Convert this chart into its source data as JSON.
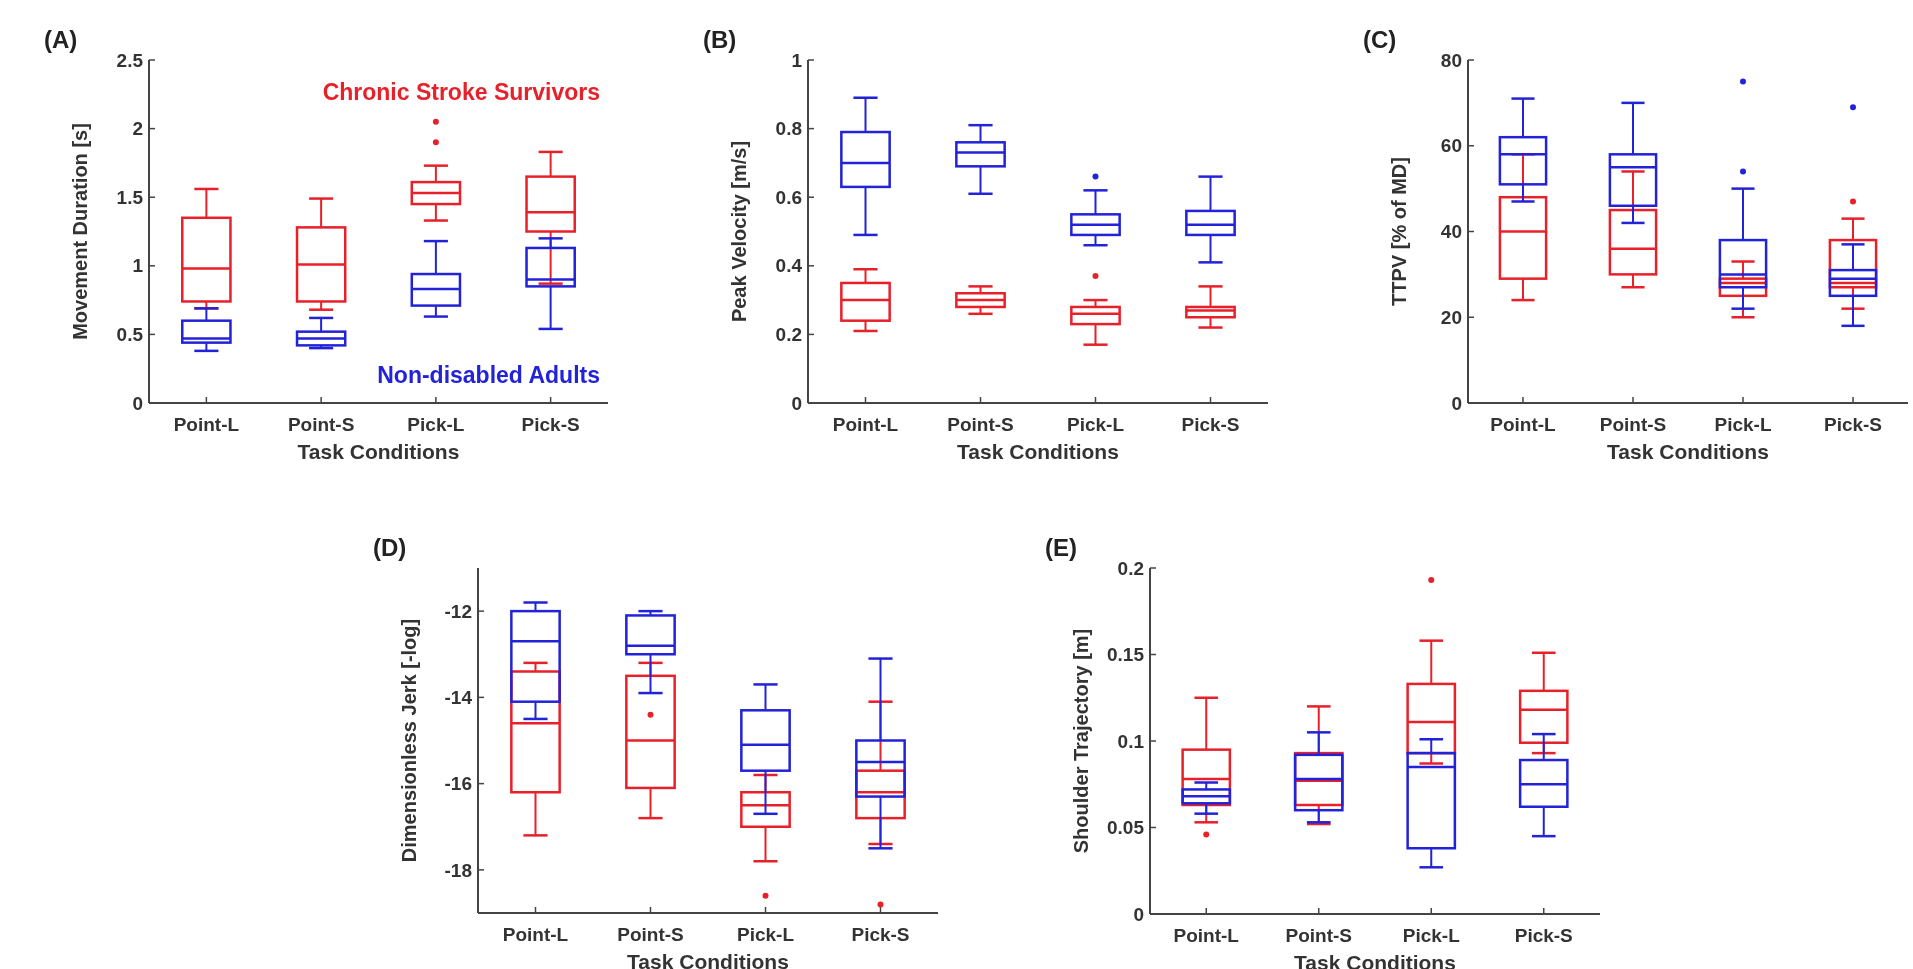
{
  "chart_data": [
    {
      "type": "box",
      "title": "(A)",
      "xlabel": "Task Conditions",
      "ylabel": "Movement Duration [s]",
      "categories": [
        "Point-L",
        "Point-S",
        "Pick-L",
        "Pick-S"
      ],
      "ylim": [
        0,
        2.5
      ],
      "yticks": [
        0,
        0.5,
        1,
        1.5,
        2,
        2.5
      ],
      "series": [
        {
          "name": "Chronic Stroke Survivors",
          "color": "#e8202a",
          "boxes": [
            {
              "low": 0.69,
              "q1": 0.74,
              "median": 0.98,
              "q3": 1.35,
              "high": 1.56
            },
            {
              "low": 0.68,
              "q1": 0.74,
              "median": 1.01,
              "q3": 1.28,
              "high": 1.49
            },
            {
              "low": 1.33,
              "q1": 1.45,
              "median": 1.53,
              "q3": 1.61,
              "high": 1.73,
              "outliers": [
                1.9,
                2.05
              ]
            },
            {
              "low": 0.87,
              "q1": 1.25,
              "median": 1.39,
              "q3": 1.65,
              "high": 1.83
            }
          ]
        },
        {
          "name": "Non-disabled Adults",
          "color": "#2222d8",
          "boxes": [
            {
              "low": 0.38,
              "q1": 0.44,
              "median": 0.47,
              "q3": 0.6,
              "high": 0.69
            },
            {
              "low": 0.4,
              "q1": 0.42,
              "median": 0.47,
              "q3": 0.52,
              "high": 0.62
            },
            {
              "low": 0.63,
              "q1": 0.71,
              "median": 0.83,
              "q3": 0.94,
              "high": 1.18
            },
            {
              "low": 0.54,
              "q1": 0.85,
              "median": 0.9,
              "q3": 1.13,
              "high": 1.2
            }
          ]
        }
      ]
    },
    {
      "type": "box",
      "title": "(B)",
      "xlabel": "Task Conditions",
      "ylabel": "Peak Velocity [m/s]",
      "categories": [
        "Point-L",
        "Point-S",
        "Pick-L",
        "Pick-S"
      ],
      "ylim": [
        0,
        1
      ],
      "yticks": [
        0,
        0.2,
        0.4,
        0.6,
        0.8,
        1
      ],
      "series": [
        {
          "color": "#e8202a",
          "boxes": [
            {
              "low": 0.21,
              "q1": 0.24,
              "median": 0.3,
              "q3": 0.35,
              "high": 0.39
            },
            {
              "low": 0.26,
              "q1": 0.28,
              "median": 0.3,
              "q3": 0.32,
              "high": 0.34
            },
            {
              "low": 0.17,
              "q1": 0.23,
              "median": 0.26,
              "q3": 0.28,
              "high": 0.3,
              "outliers": [
                0.37
              ]
            },
            {
              "low": 0.22,
              "q1": 0.25,
              "median": 0.27,
              "q3": 0.28,
              "high": 0.34
            }
          ]
        },
        {
          "color": "#2222d8",
          "boxes": [
            {
              "low": 0.49,
              "q1": 0.63,
              "median": 0.7,
              "q3": 0.79,
              "high": 0.89
            },
            {
              "low": 0.61,
              "q1": 0.69,
              "median": 0.73,
              "q3": 0.76,
              "high": 0.81
            },
            {
              "low": 0.46,
              "q1": 0.49,
              "median": 0.52,
              "q3": 0.55,
              "high": 0.62,
              "outliers": [
                0.66
              ]
            },
            {
              "low": 0.41,
              "q1": 0.49,
              "median": 0.52,
              "q3": 0.56,
              "high": 0.66
            }
          ]
        }
      ]
    },
    {
      "type": "box",
      "title": "(C)",
      "xlabel": "Task Conditions",
      "ylabel": "TTPV [% of MD]",
      "categories": [
        "Point-L",
        "Point-S",
        "Pick-L",
        "Pick-S"
      ],
      "ylim": [
        0,
        80
      ],
      "yticks": [
        0,
        20,
        40,
        60,
        80
      ],
      "series": [
        {
          "color": "#e8202a",
          "boxes": [
            {
              "low": 24,
              "q1": 29,
              "median": 40,
              "q3": 48,
              "high": 58
            },
            {
              "low": 27,
              "q1": 30,
              "median": 36,
              "q3": 45,
              "high": 54
            },
            {
              "low": 20,
              "q1": 25,
              "median": 28,
              "q3": 29,
              "high": 33
            },
            {
              "low": 22,
              "q1": 27,
              "median": 28,
              "q3": 38,
              "high": 43,
              "outliers": [
                47
              ]
            }
          ]
        },
        {
          "color": "#2222d8",
          "boxes": [
            {
              "low": 47,
              "q1": 51,
              "median": 58,
              "q3": 62,
              "high": 71
            },
            {
              "low": 42,
              "q1": 46,
              "median": 55,
              "q3": 58,
              "high": 70
            },
            {
              "low": 22,
              "q1": 27,
              "median": 30,
              "q3": 38,
              "high": 50,
              "outliers": [
                54,
                75
              ]
            },
            {
              "low": 18,
              "q1": 25,
              "median": 29,
              "q3": 31,
              "high": 37,
              "outliers": [
                69
              ]
            }
          ]
        }
      ]
    },
    {
      "type": "box",
      "title": "(D)",
      "xlabel": "Task Conditions",
      "ylabel": "Dimensionless Jerk [-log]",
      "categories": [
        "Point-L",
        "Point-S",
        "Pick-L",
        "Pick-S"
      ],
      "ylim": [
        -19,
        -11
      ],
      "yticks": [
        -18,
        -16,
        -14,
        -12
      ],
      "series": [
        {
          "color": "#e8202a",
          "boxes": [
            {
              "low": -17.2,
              "q1": -16.2,
              "median": -14.6,
              "q3": -13.4,
              "high": -13.2
            },
            {
              "low": -16.8,
              "q1": -16.1,
              "median": -15,
              "q3": -13.5,
              "high": -13.2,
              "outliers": [
                -14.4
              ]
            },
            {
              "low": -17.8,
              "q1": -17,
              "median": -16.5,
              "q3": -16.2,
              "high": -15.8,
              "outliers": [
                -18.6
              ]
            },
            {
              "low": -17.4,
              "q1": -16.8,
              "median": -16.2,
              "q3": -15.7,
              "high": -14.1,
              "outliers": [
                -18.8
              ]
            }
          ]
        },
        {
          "color": "#2222d8",
          "boxes": [
            {
              "low": -14.5,
              "q1": -14.1,
              "median": -12.7,
              "q3": -12,
              "high": -11.8
            },
            {
              "low": -13.9,
              "q1": -13,
              "median": -12.8,
              "q3": -12.1,
              "high": -12
            },
            {
              "low": -16.7,
              "q1": -15.7,
              "median": -15.1,
              "q3": -14.3,
              "high": -13.7
            },
            {
              "low": -17.5,
              "q1": -16.3,
              "median": -15.5,
              "q3": -15,
              "high": -13.1
            }
          ]
        }
      ]
    },
    {
      "type": "box",
      "title": "(E)",
      "xlabel": "Task Conditions",
      "ylabel": "Shoulder Trajectory [m]",
      "categories": [
        "Point-L",
        "Point-S",
        "Pick-L",
        "Pick-S"
      ],
      "ylim": [
        0,
        0.2
      ],
      "yticks": [
        0,
        0.05,
        0.1,
        0.15,
        0.2
      ],
      "series": [
        {
          "color": "#e8202a",
          "boxes": [
            {
              "low": 0.053,
              "q1": 0.063,
              "median": 0.078,
              "q3": 0.095,
              "high": 0.125,
              "outliers": [
                0.046
              ]
            },
            {
              "low": 0.052,
              "q1": 0.063,
              "median": 0.077,
              "q3": 0.093,
              "high": 0.12
            },
            {
              "low": 0.087,
              "q1": 0.093,
              "median": 0.111,
              "q3": 0.133,
              "high": 0.158,
              "outliers": [
                0.193
              ]
            },
            {
              "low": 0.093,
              "q1": 0.099,
              "median": 0.118,
              "q3": 0.129,
              "high": 0.151
            }
          ]
        },
        {
          "color": "#2222d8",
          "boxes": [
            {
              "low": 0.058,
              "q1": 0.064,
              "median": 0.068,
              "q3": 0.072,
              "high": 0.076
            },
            {
              "low": 0.053,
              "q1": 0.06,
              "median": 0.078,
              "q3": 0.092,
              "high": 0.105
            },
            {
              "low": 0.027,
              "q1": 0.038,
              "median": 0.085,
              "q3": 0.093,
              "high": 0.101
            },
            {
              "low": 0.045,
              "q1": 0.062,
              "median": 0.075,
              "q3": 0.089,
              "high": 0.104
            }
          ]
        }
      ]
    }
  ]
}
